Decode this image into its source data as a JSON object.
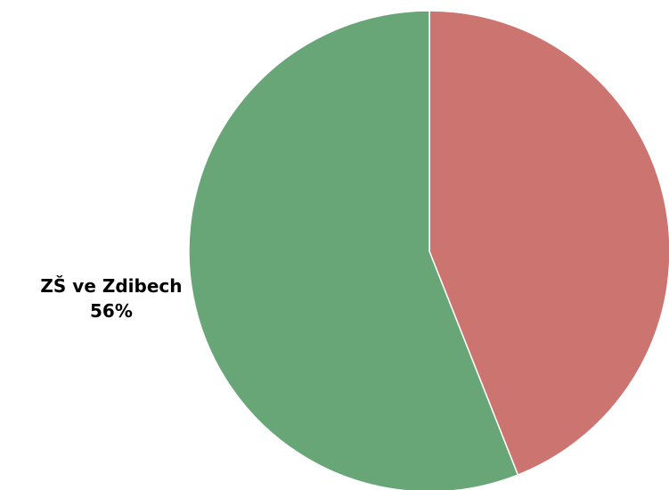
{
  "chart_data": {
    "type": "pie",
    "categories": [
      null,
      "ZŠ ve Zdibech"
    ],
    "values": [
      44,
      56
    ],
    "value_labels": [
      null,
      "56%"
    ],
    "colors": [
      "#cc7470",
      "#68a678"
    ]
  }
}
